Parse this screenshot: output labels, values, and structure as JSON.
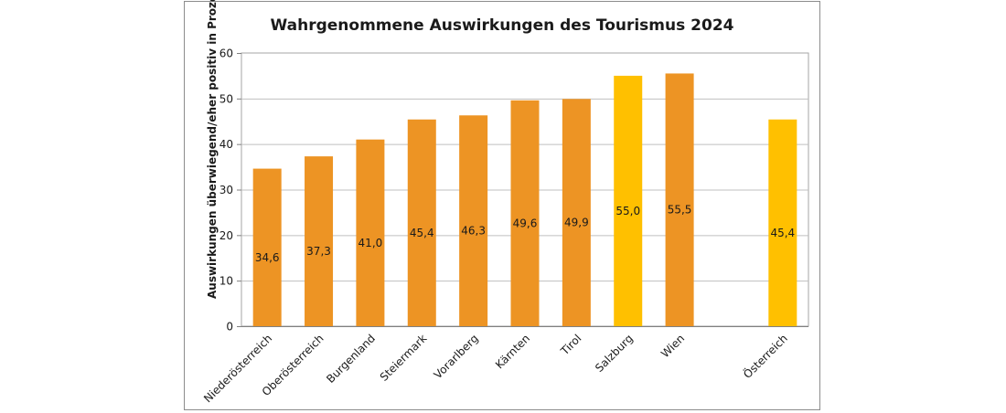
{
  "chart_data": {
    "type": "bar",
    "title": "Wahrgenommene Auswirkungen des Tourismus 2024",
    "xlabel": "",
    "ylabel": "Auswirkungen überwiegend/eher positiv in Prozent",
    "ylim": [
      0,
      60
    ],
    "yticks": [
      "0",
      "10",
      "20",
      "30",
      "40",
      "50",
      "60"
    ],
    "grid": true,
    "categories": [
      "Niederösterreich",
      "Oberösterreich",
      "Burgenland",
      "Steiermark",
      "Vorarlberg",
      "Kärnten",
      "Tirol",
      "Salzburg",
      "Wien",
      "",
      "Österreich"
    ],
    "values": [
      34.6,
      37.3,
      41.0,
      45.4,
      46.3,
      49.6,
      49.9,
      55.0,
      55.5,
      null,
      45.4
    ],
    "value_labels": [
      "34,6",
      "37,3",
      "41,0",
      "45,4",
      "46,3",
      "49,6",
      "49,9",
      "55,0",
      "55,5",
      "",
      "45,4"
    ],
    "colors": [
      "#ED9424",
      "#ED9424",
      "#ED9424",
      "#ED9424",
      "#ED9424",
      "#ED9424",
      "#ED9424",
      "#FFC000",
      "#ED9424",
      "",
      "#FFC000"
    ]
  }
}
